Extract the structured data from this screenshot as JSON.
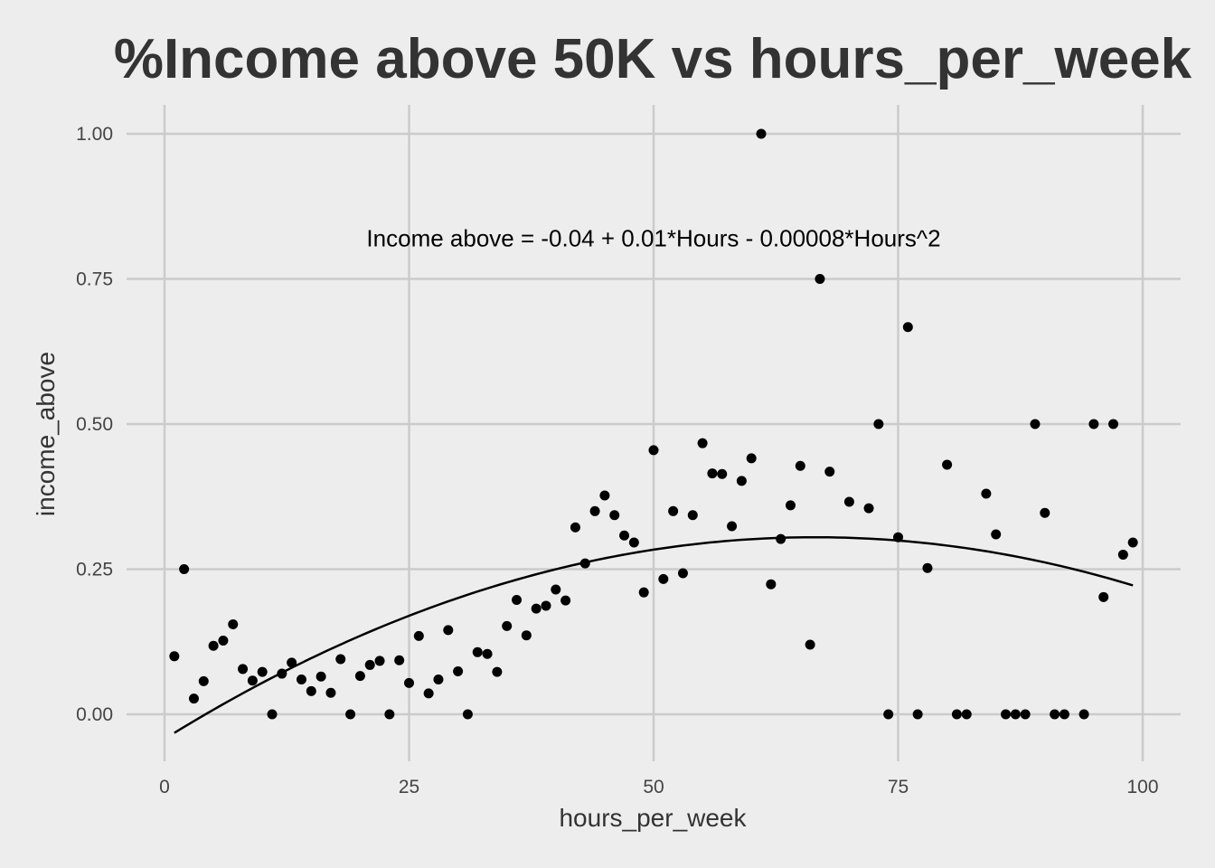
{
  "chart_data": {
    "type": "scatter",
    "title": "%Income above 50K vs hours_per_week",
    "xlabel": "hours_per_week",
    "ylabel": "income_above",
    "xlim": [
      -1,
      101
    ],
    "ylim": [
      -0.08,
      1.05
    ],
    "x_ticks": [
      0,
      25,
      50,
      75,
      100
    ],
    "x_tick_labels": [
      "0",
      "25",
      "50",
      "75",
      "100"
    ],
    "y_ticks": [
      0,
      0.25,
      0.5,
      0.75,
      1
    ],
    "y_tick_labels": [
      "0.00",
      "0.25",
      "0.50",
      "0.75",
      "1.00"
    ],
    "grid": true,
    "legend": "none",
    "annotation": {
      "text": "Income above = -0.04 + 0.01*Hours - 0.00008*Hours^2",
      "x": 50,
      "y": 0.82
    },
    "fit_curve": {
      "type": "quadratic",
      "x_range": [
        1,
        99
      ],
      "y_start": -0.032,
      "y_peak": 0.305,
      "x_peak": 66.5,
      "y_end": 0.223
    },
    "points": [
      [
        1,
        0.1
      ],
      [
        2,
        0.25
      ],
      [
        3,
        0.027
      ],
      [
        4,
        0.057
      ],
      [
        5,
        0.118
      ],
      [
        6,
        0.127
      ],
      [
        7,
        0.155
      ],
      [
        8,
        0.078
      ],
      [
        9,
        0.058
      ],
      [
        10,
        0.073
      ],
      [
        11,
        0.0
      ],
      [
        12,
        0.07
      ],
      [
        13,
        0.089
      ],
      [
        14,
        0.06
      ],
      [
        15,
        0.04
      ],
      [
        16,
        0.065
      ],
      [
        17,
        0.037
      ],
      [
        18,
        0.095
      ],
      [
        19,
        0.0
      ],
      [
        20,
        0.066
      ],
      [
        21,
        0.085
      ],
      [
        22,
        0.092
      ],
      [
        23,
        0.0
      ],
      [
        24,
        0.093
      ],
      [
        25,
        0.054
      ],
      [
        26,
        0.135
      ],
      [
        27,
        0.036
      ],
      [
        28,
        0.06
      ],
      [
        29,
        0.145
      ],
      [
        30,
        0.074
      ],
      [
        31,
        0.0
      ],
      [
        32,
        0.107
      ],
      [
        33,
        0.104
      ],
      [
        34,
        0.073
      ],
      [
        35,
        0.152
      ],
      [
        36,
        0.197
      ],
      [
        37,
        0.136
      ],
      [
        38,
        0.182
      ],
      [
        39,
        0.187
      ],
      [
        40,
        0.215
      ],
      [
        41,
        0.196
      ],
      [
        42,
        0.322
      ],
      [
        43,
        0.26
      ],
      [
        44,
        0.35
      ],
      [
        45,
        0.377
      ],
      [
        46,
        0.343
      ],
      [
        47,
        0.308
      ],
      [
        48,
        0.296
      ],
      [
        49,
        0.21
      ],
      [
        50,
        0.455
      ],
      [
        51,
        0.233
      ],
      [
        52,
        0.35
      ],
      [
        53,
        0.243
      ],
      [
        54,
        0.343
      ],
      [
        55,
        0.467
      ],
      [
        56,
        0.415
      ],
      [
        57,
        0.414
      ],
      [
        58,
        0.324
      ],
      [
        59,
        0.402
      ],
      [
        60,
        0.441
      ],
      [
        61,
        1.0
      ],
      [
        62,
        0.224
      ],
      [
        63,
        0.302
      ],
      [
        64,
        0.36
      ],
      [
        65,
        0.428
      ],
      [
        66,
        0.12
      ],
      [
        67,
        0.75
      ],
      [
        68,
        0.418
      ],
      [
        70,
        0.366
      ],
      [
        72,
        0.355
      ],
      [
        73,
        0.5
      ],
      [
        74,
        0.0
      ],
      [
        75,
        0.305
      ],
      [
        76,
        0.667
      ],
      [
        77,
        0.0
      ],
      [
        78,
        0.252
      ],
      [
        80,
        0.43
      ],
      [
        81,
        0.0
      ],
      [
        82,
        0.0
      ],
      [
        84,
        0.38
      ],
      [
        85,
        0.31
      ],
      [
        86,
        0.0
      ],
      [
        87,
        0.0
      ],
      [
        88,
        0.0
      ],
      [
        89,
        0.5
      ],
      [
        90,
        0.347
      ],
      [
        91,
        0.0
      ],
      [
        92,
        0.0
      ],
      [
        94,
        0.0
      ],
      [
        95,
        0.5
      ],
      [
        96,
        0.202
      ],
      [
        97,
        0.5
      ],
      [
        98,
        0.275
      ],
      [
        99,
        0.296
      ]
    ]
  }
}
